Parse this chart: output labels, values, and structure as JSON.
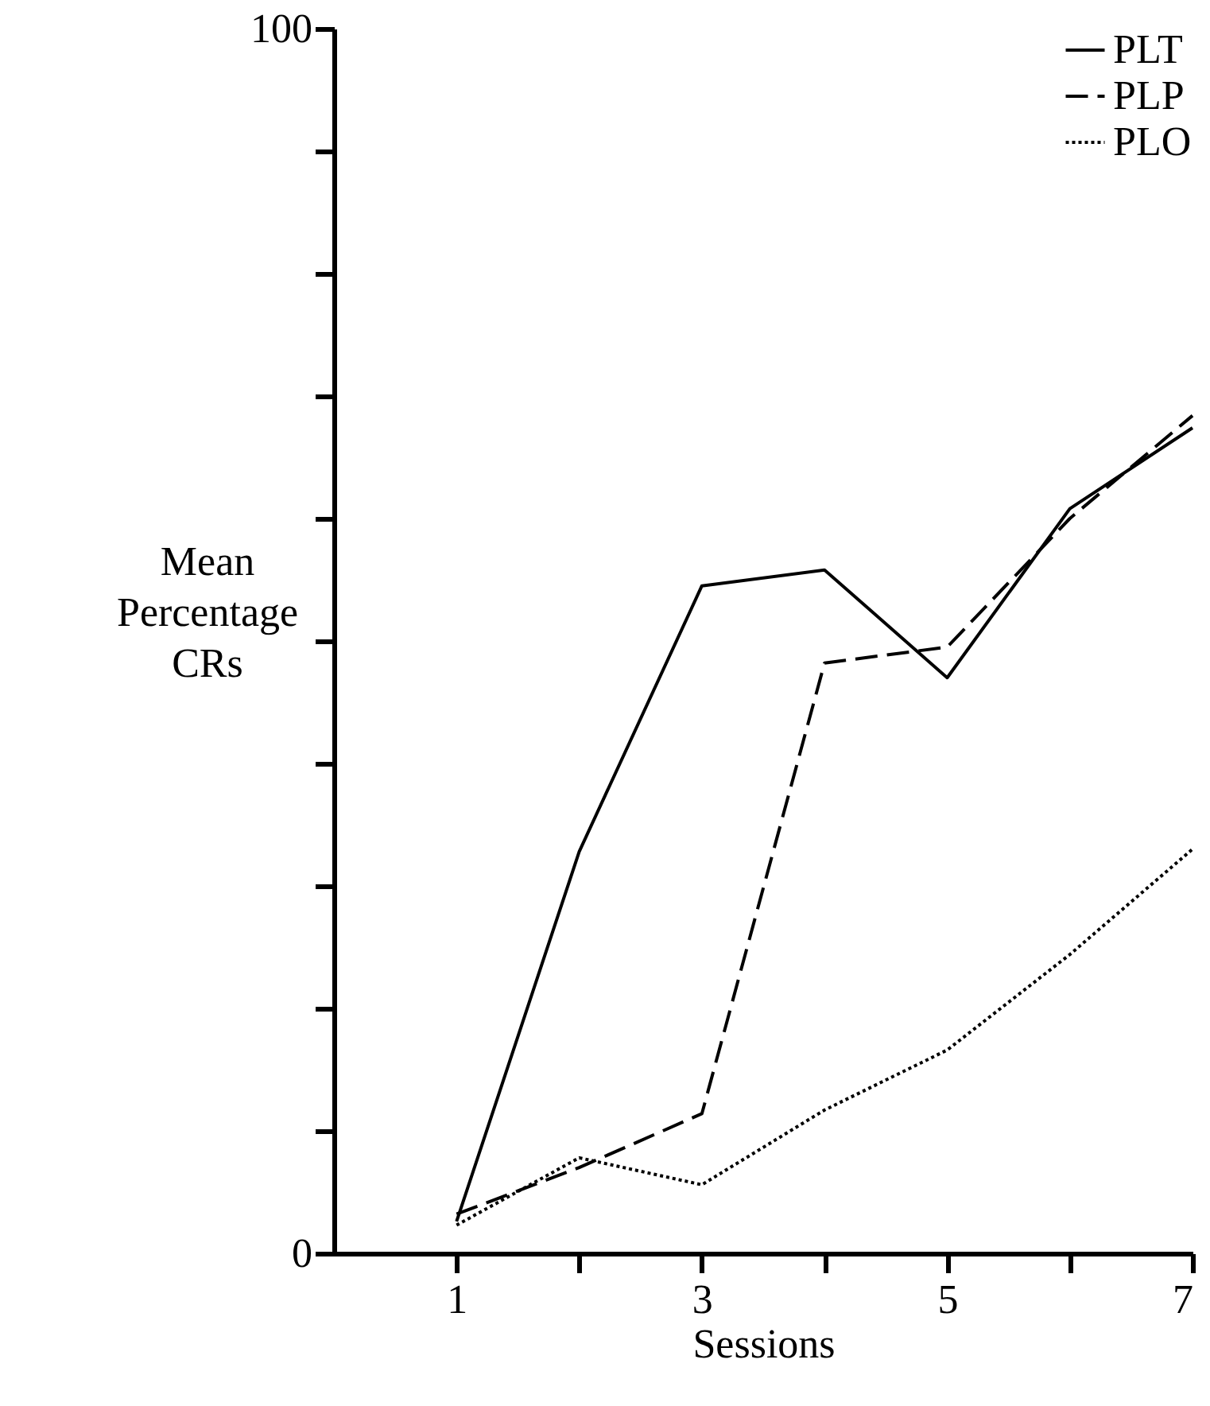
{
  "chart_data": {
    "type": "line",
    "xlabel": "Sessions",
    "ylabel": "Mean Percentage CRs",
    "x": [
      1,
      2,
      3,
      4,
      5,
      6,
      7
    ],
    "series": [
      {
        "name": "PLT",
        "color": "#000000",
        "line_style": "solid",
        "values": [
          2.6,
          32.8,
          54.5,
          55.8,
          47,
          60.8,
          67.4
        ]
      },
      {
        "name": "PLP",
        "color": "#000000",
        "line_style": "dashed",
        "values": [
          3.2,
          7,
          11.4,
          48.2,
          49.5,
          60,
          68.4
        ]
      },
      {
        "name": "PLO",
        "color": "#000000",
        "line_style": "dotted",
        "values": [
          2.3,
          7.8,
          5.6,
          11.7,
          16.6,
          24.4,
          33
        ]
      }
    ],
    "xlim": [
      0,
      7
    ],
    "xticks": [
      1,
      {
        "value": 2,
        "label": null
      },
      3,
      {
        "value": 4,
        "label": null
      },
      5,
      {
        "value": 6,
        "label": null
      },
      7
    ],
    "ylim": [
      0,
      100
    ],
    "yticks": [
      0,
      {
        "value": 10,
        "label": null
      },
      {
        "value": 20,
        "label": null
      },
      {
        "value": 30,
        "label": null
      },
      {
        "value": 40,
        "label": null
      },
      {
        "value": 50,
        "label": null
      },
      {
        "value": 60,
        "label": null
      },
      {
        "value": 70,
        "label": null
      },
      {
        "value": 80,
        "label": null
      },
      {
        "value": 90,
        "label": null
      },
      100
    ],
    "legend": "top right",
    "grid": false,
    "marker": "none"
  }
}
